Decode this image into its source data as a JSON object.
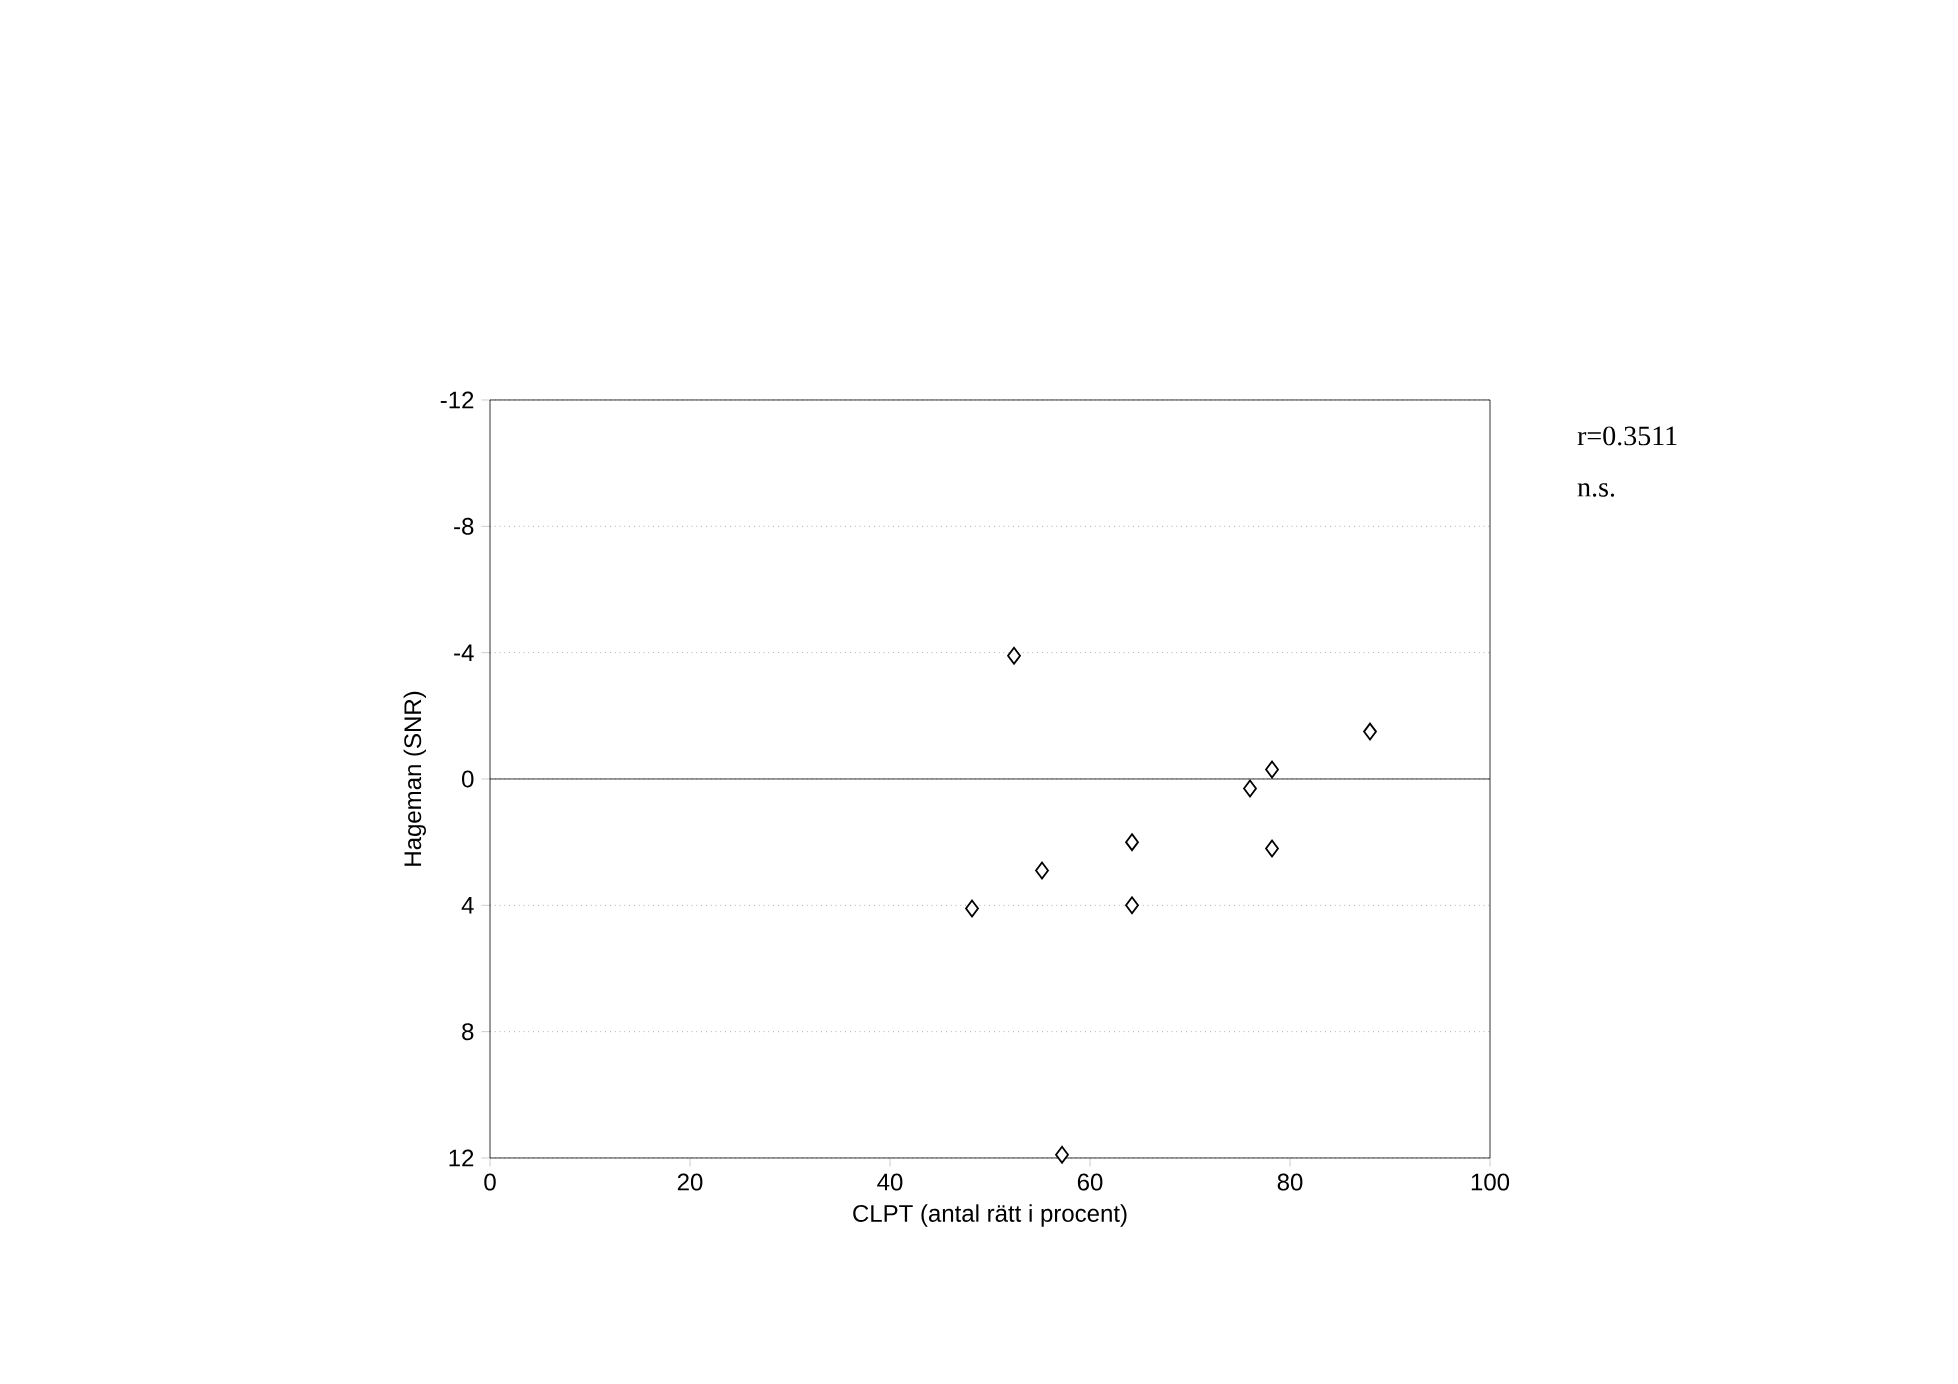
{
  "chart_data": {
    "type": "scatter",
    "xlabel": "CLPT (antal rätt i procent)",
    "ylabel": "Hageman (SNR)",
    "annotations": [
      "r=0.3511",
      "n.s."
    ],
    "x": [
      52.4,
      88,
      78.2,
      76,
      64.2,
      78.2,
      55.2,
      48.2,
      64.2,
      57.2
    ],
    "values": [
      -3.9,
      -1.5,
      -0.3,
      0.3,
      2.0,
      2.2,
      2.9,
      4.1,
      4.0,
      11.9
    ],
    "color": "#000000",
    "marker": "diamond",
    "xlim": [
      0,
      100
    ],
    "xticks": [
      0,
      20,
      40,
      60,
      80,
      100
    ],
    "ylim": [
      12,
      -12
    ],
    "yticks": [
      -12,
      -8,
      -4,
      0,
      4,
      8,
      12
    ],
    "grid": "y"
  }
}
